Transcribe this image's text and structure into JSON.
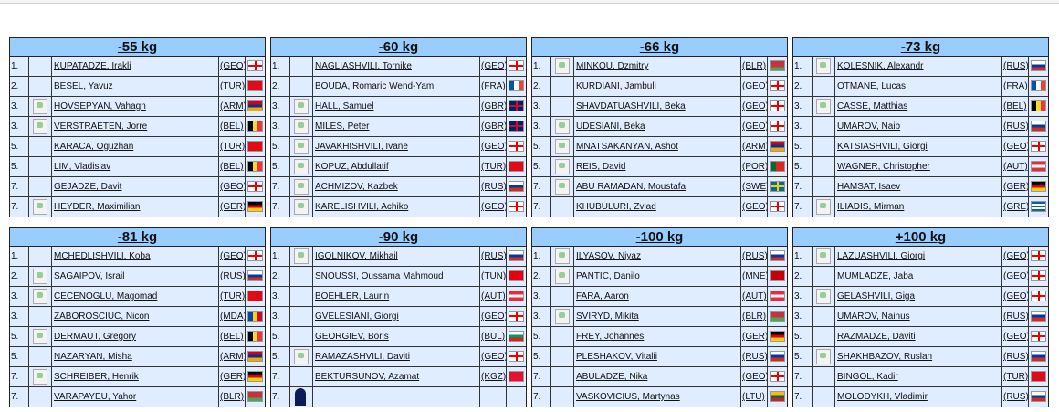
{
  "categories": [
    {
      "title": "-55 kg",
      "rows": [
        {
          "rank": "1.",
          "name": "KUPATADZE, Irakli",
          "country": "(GEO)",
          "photo": false
        },
        {
          "rank": "2.",
          "name": "BESEL, Yavuz",
          "country": "(TUR)",
          "photo": false
        },
        {
          "rank": "3.",
          "name": "HOVSEPYAN, Vahagn",
          "country": "(ARM)",
          "photo": true
        },
        {
          "rank": "3.",
          "name": "VERSTRAETEN, Jorre",
          "country": "(BEL)",
          "photo": true
        },
        {
          "rank": "5.",
          "name": "KARACA, Oguzhan",
          "country": "(TUR)",
          "photo": false
        },
        {
          "rank": "5.",
          "name": "LIM, Vladislav",
          "country": "(BEL)",
          "photo": false
        },
        {
          "rank": "7.",
          "name": "GEJADZE, Davit",
          "country": "(GEO)",
          "photo": false
        },
        {
          "rank": "7.",
          "name": "HEYDER, Maximilian",
          "country": "(GER)",
          "photo": true
        }
      ]
    },
    {
      "title": "-60 kg",
      "rows": [
        {
          "rank": "1.",
          "name": "NAGLIASHVILI, Tornike",
          "country": "(GEO)",
          "photo": false
        },
        {
          "rank": "2.",
          "name": "BOUDA, Romaric Wend-Yam",
          "country": "(FRA)",
          "photo": false
        },
        {
          "rank": "3.",
          "name": "HALL, Samuel",
          "country": "(GBR)",
          "photo": true
        },
        {
          "rank": "3.",
          "name": "MILES, Peter",
          "country": "(GBR)",
          "photo": true
        },
        {
          "rank": "5.",
          "name": "JAVAKHISHVILI, Ivane",
          "country": "(GEO)",
          "photo": true
        },
        {
          "rank": "5.",
          "name": "KOPUZ, Abdullatif",
          "country": "(TUR)",
          "photo": true
        },
        {
          "rank": "7.",
          "name": "ACHMIZOV, Kazbek",
          "country": "(RUS)",
          "photo": true
        },
        {
          "rank": "7.",
          "name": "KARELISHVILI, Achiko",
          "country": "(GEO)",
          "photo": true
        }
      ]
    },
    {
      "title": "-66 kg",
      "rows": [
        {
          "rank": "1.",
          "name": "MINKOU, Dzmitry",
          "country": "(BLR)",
          "photo": true
        },
        {
          "rank": "2.",
          "name": "KURDIANI, Jambuli",
          "country": "(GEO)",
          "photo": false
        },
        {
          "rank": "3.",
          "name": "SHAVDATUASHVILI, Beka",
          "country": "(GEO)",
          "photo": false
        },
        {
          "rank": "3.",
          "name": "UDESIANI, Beka",
          "country": "(GEO)",
          "photo": true
        },
        {
          "rank": "5.",
          "name": "MNATSAKANYAN, Ashot",
          "country": "(ARM)",
          "photo": true
        },
        {
          "rank": "5.",
          "name": "REIS, David",
          "country": "(POR)",
          "photo": true
        },
        {
          "rank": "7.",
          "name": "ABU RAMADAN, Moustafa",
          "country": "(SWE)",
          "photo": true
        },
        {
          "rank": "7.",
          "name": "KHUBULURI, Zviad",
          "country": "(GEO)",
          "photo": false
        }
      ]
    },
    {
      "title": "-73 kg",
      "rows": [
        {
          "rank": "1.",
          "name": "KOLESNIK, Alexandr",
          "country": "(RUS)",
          "photo": true
        },
        {
          "rank": "2.",
          "name": "OTMANE, Lucas",
          "country": "(FRA)",
          "photo": false
        },
        {
          "rank": "3.",
          "name": "CASSE, Matthias",
          "country": "(BEL)",
          "photo": true
        },
        {
          "rank": "3.",
          "name": "UMAROV, Naib",
          "country": "(RUS)",
          "photo": false
        },
        {
          "rank": "5.",
          "name": "KATSIASHVILI, Giorgi",
          "country": "(GEO)",
          "photo": false
        },
        {
          "rank": "5.",
          "name": "WAGNER, Christopher",
          "country": "(AUT)",
          "photo": false
        },
        {
          "rank": "7.",
          "name": "HAMSAT, Isaev",
          "country": "(GER)",
          "photo": false
        },
        {
          "rank": "7.",
          "name": "ILIADIS, Mirman",
          "country": "(GRE)",
          "photo": true
        }
      ]
    },
    {
      "title": "-81 kg",
      "rows": [
        {
          "rank": "1.",
          "name": "MCHEDLISHVILI, Koba",
          "country": "(GEO)",
          "photo": false
        },
        {
          "rank": "2.",
          "name": "SAGAIPOV, Israil",
          "country": "(RUS)",
          "photo": true
        },
        {
          "rank": "3.",
          "name": "CECENOGLU, Magomad",
          "country": "(TUR)",
          "photo": true
        },
        {
          "rank": "3.",
          "name": "ZABOROSCIUC, Nicon",
          "country": "(MDA)",
          "photo": false
        },
        {
          "rank": "5.",
          "name": "DERMAUT, Gregory",
          "country": "(BEL)",
          "photo": true
        },
        {
          "rank": "5.",
          "name": "NAZARYAN, Misha",
          "country": "(ARM)",
          "photo": false
        },
        {
          "rank": "7.",
          "name": "SCHREIBER, Henrik",
          "country": "(GER)",
          "photo": true
        },
        {
          "rank": "7.",
          "name": "VARAPAYEU, Yahor",
          "country": "(BLR)",
          "photo": false
        }
      ]
    },
    {
      "title": "-90 kg",
      "rows": [
        {
          "rank": "1.",
          "name": "IGOLNIKOV, Mikhail",
          "country": "(RUS)",
          "photo": true
        },
        {
          "rank": "2.",
          "name": "SNOUSSI, Oussama Mahmoud",
          "country": "(TUN)",
          "photo": false
        },
        {
          "rank": "3.",
          "name": "BOEHLER, Laurin",
          "country": "(AUT)",
          "photo": false
        },
        {
          "rank": "3.",
          "name": "GVELESIANI, Giorgi",
          "country": "(GEO)",
          "photo": false
        },
        {
          "rank": "5.",
          "name": "GEORGIEV, Boris",
          "country": "(BUL)",
          "photo": false
        },
        {
          "rank": "5.",
          "name": "RAMAZASHVILI, Daviti",
          "country": "(GEO)",
          "photo": true
        },
        {
          "rank": "7.",
          "name": "BEKTURSUNOV, Azamat",
          "country": "(KGZ)",
          "photo": false
        },
        {
          "rank": "7.",
          "photo": "silhouette"
        }
      ]
    },
    {
      "title": "-100 kg",
      "rows": [
        {
          "rank": "1.",
          "name": "ILYASOV, Niyaz",
          "country": "(RUS)",
          "photo": true
        },
        {
          "rank": "2.",
          "name": "PANTIC, Danilo",
          "country": "(MNE)",
          "photo": true
        },
        {
          "rank": "3.",
          "name": "FARA, Aaron",
          "country": "(AUT)",
          "photo": false
        },
        {
          "rank": "3.",
          "name": "SVIRYD, Mikita",
          "country": "(BLR)",
          "photo": true
        },
        {
          "rank": "5.",
          "name": "FREY, Johannes",
          "country": "(GER)",
          "photo": false
        },
        {
          "rank": "5.",
          "name": "PLESHAKOV, Vitalii",
          "country": "(RUS)",
          "photo": false
        },
        {
          "rank": "7.",
          "name": "ABULADZE, Nika",
          "country": "(GEO)",
          "photo": false
        },
        {
          "rank": "7.",
          "name": "VASKOVICIUS, Martynas",
          "country": "(LTU)",
          "photo": false
        }
      ]
    },
    {
      "title": "+100 kg",
      "rows": [
        {
          "rank": "1.",
          "name": "LAZUASHVILI, Giorgi",
          "country": "(GEO)",
          "photo": true
        },
        {
          "rank": "2.",
          "name": "MUMLADZE, Jaba",
          "country": "(GEO)",
          "photo": false
        },
        {
          "rank": "3.",
          "name": "GELASHVILI, Giga",
          "country": "(GEO)",
          "photo": true
        },
        {
          "rank": "3.",
          "name": "UMAROV, Nainus",
          "country": "(RUS)",
          "photo": false
        },
        {
          "rank": "5.",
          "name": "RAZMADZE, Daviti",
          "country": "(GEO)",
          "photo": false
        },
        {
          "rank": "5.",
          "name": "SHAKHBAZOV, Ruslan",
          "country": "(RUS)",
          "photo": true
        },
        {
          "rank": "7.",
          "name": "BINGOL, Kadir",
          "country": "(TUR)",
          "photo": false
        },
        {
          "rank": "7.",
          "name": "MOLODYKH, Vladimir",
          "country": "(RUS)",
          "photo": false
        }
      ]
    }
  ]
}
